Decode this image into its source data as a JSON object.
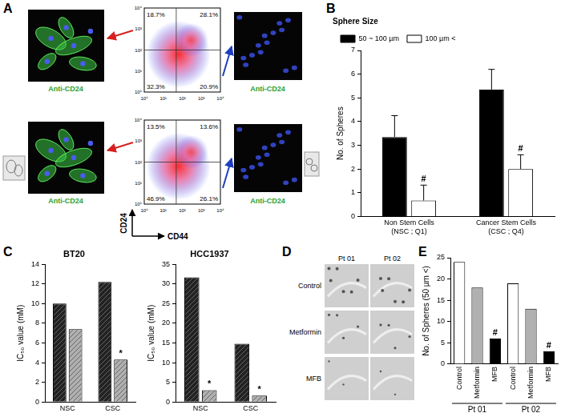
{
  "panel_labels": [
    "A",
    "B",
    "C",
    "D",
    "E"
  ],
  "flow_cytometry": {
    "x_label": "CD44",
    "y_label": "CD24",
    "axis_ticks": [
      "10⁰",
      "10¹",
      "10²",
      "10³",
      "10⁴"
    ],
    "plots": [
      {
        "quadrants": [
          "18.7%",
          "28.1%",
          "32.3%",
          "20.9%"
        ],
        "images": [
          "Anti-CD24",
          "Anti-CD24"
        ]
      },
      {
        "quadrants": [
          "13.5%",
          "13.6%",
          "46.9%",
          "26.1%"
        ],
        "images": [
          "Anti-CD24",
          "Anti-CD24"
        ]
      }
    ]
  },
  "sphere_images": {
    "columns": [
      "Pt 01",
      "Pt 02"
    ],
    "rows": [
      "Control",
      "Metformin",
      "MFB"
    ]
  },
  "chart_data": [
    {
      "type": "bar",
      "legend": "upper left",
      "legend_title": "Sphere Size",
      "categories": [
        "Non Stem Cells\n(NSC ; Q1)",
        "Cancer Stem Cells\n(CSC ; Q4)"
      ],
      "series": [
        {
          "name": "50 ~ 100 µm",
          "color": "#000000",
          "values": [
            3.35,
            5.35
          ],
          "errors": [
            0.9,
            0.85
          ]
        },
        {
          "name": "100 µm <",
          "color": "#ffffff",
          "values": [
            0.67,
            2.0
          ],
          "errors": [
            0.65,
            0.6
          ]
        }
      ],
      "y_label": "No. of Spheres",
      "ylim": [
        0,
        7
      ],
      "yticks": [
        0,
        1,
        2,
        3,
        4,
        5,
        6,
        7
      ],
      "grid": false,
      "annotations": [
        {
          "category": 0,
          "series": 1,
          "text": "#"
        },
        {
          "category": 1,
          "series": 1,
          "text": "#"
        }
      ]
    },
    {
      "type": "bar",
      "title": "BT20",
      "categories": [
        "NSC",
        "CSC"
      ],
      "series": [
        {
          "color": "#222222",
          "values": [
            10.0,
            12.2
          ]
        },
        {
          "color": "#b0b0b0",
          "values": [
            7.4,
            4.3
          ]
        }
      ],
      "y_label": "IC₅₀ value (mM)",
      "ylim": [
        0,
        14
      ],
      "yticks": [
        0,
        2,
        4,
        6,
        8,
        10,
        12,
        14
      ],
      "grid": false,
      "annotations": [
        {
          "category": 1,
          "series": 1,
          "text": "*"
        }
      ]
    },
    {
      "type": "bar",
      "title": "HCC1937",
      "categories": [
        "NSC",
        "CSC"
      ],
      "series": [
        {
          "color": "#222222",
          "values": [
            31.7,
            14.8
          ]
        },
        {
          "color": "#b0b0b0",
          "values": [
            3.0,
            1.6
          ]
        }
      ],
      "y_label": "IC₅₀ value (mM)",
      "ylim": [
        0,
        35
      ],
      "yticks": [
        0,
        5,
        10,
        15,
        20,
        25,
        30,
        35
      ],
      "grid": false,
      "annotations": [
        {
          "category": 0,
          "series": 1,
          "text": "*"
        },
        {
          "category": 1,
          "series": 1,
          "text": "*"
        }
      ]
    },
    {
      "type": "bar",
      "categories": [
        "Control",
        "Metformin",
        "MFB",
        "Control",
        "Metformin",
        "MFB"
      ],
      "values": [
        24,
        18,
        6,
        19,
        13,
        3
      ],
      "colors": [
        "#ffffff",
        "#b0b0b0",
        "#000000",
        "#ffffff",
        "#b0b0b0",
        "#000000"
      ],
      "y_label": "No. of Spheres (50 µm <)",
      "ylim": [
        0,
        25
      ],
      "yticks": [
        0,
        5,
        10,
        15,
        20,
        25
      ],
      "grid": false,
      "groups": [
        {
          "label": "Pt 01",
          "from": 0,
          "to": 2
        },
        {
          "label": "Pt 02",
          "from": 3,
          "to": 5
        }
      ],
      "annotations": [
        {
          "category": 2,
          "text": "#"
        },
        {
          "category": 5,
          "text": "#"
        }
      ]
    }
  ]
}
